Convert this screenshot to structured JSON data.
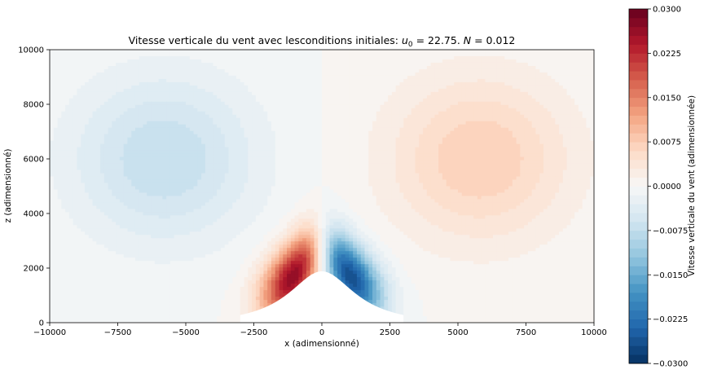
{
  "chart_data": {
    "type": "heatmap",
    "subtype": "filled-contour",
    "title_prefix": "Vitesse verticale du vent avec lesconditions initiales: ",
    "title_u": "u",
    "title_u_sub": "0",
    "title_mid": " =  22.75. ",
    "title_N": "N",
    "title_suffix": " = 0.012",
    "xlabel": "x (adimensionné)",
    "ylabel": "z (adimensionné)",
    "xlim": [
      -10000,
      10000
    ],
    "ylim": [
      0,
      10000
    ],
    "xticks": [
      "−10000",
      "−7500",
      "−5000",
      "−2500",
      "0",
      "2500",
      "5000",
      "7500",
      "10000"
    ],
    "yticks": [
      "0",
      "2000",
      "4000",
      "6000",
      "8000",
      "10000"
    ],
    "grid": false,
    "colormap": "RdBu_r",
    "colorbar": {
      "label": "Vitesse verticale du vent (adimensionnée)",
      "range": [
        -0.03,
        0.03
      ],
      "levels": 40,
      "ticks": [
        "−0.0300",
        "−0.0225",
        "−0.0150",
        "−0.0075",
        "0.0000",
        "0.0075",
        "0.0150",
        "0.0225",
        "0.0300"
      ]
    },
    "features": [
      {
        "name": "upper-negative-lobe",
        "x": -5800,
        "z": 6000,
        "value": -0.0075
      },
      {
        "name": "upper-positive-lobe",
        "x": 5800,
        "z": 6000,
        "value": 0.0075
      },
      {
        "name": "lower-positive-lobe",
        "x": -900,
        "z": 1500,
        "value": 0.03
      },
      {
        "name": "lower-negative-lobe",
        "x": 900,
        "z": 1500,
        "value": -0.03
      }
    ],
    "terrain": {
      "type": "mountain",
      "peak_x": 0,
      "peak_z": 2000,
      "half_width": 1500
    }
  }
}
